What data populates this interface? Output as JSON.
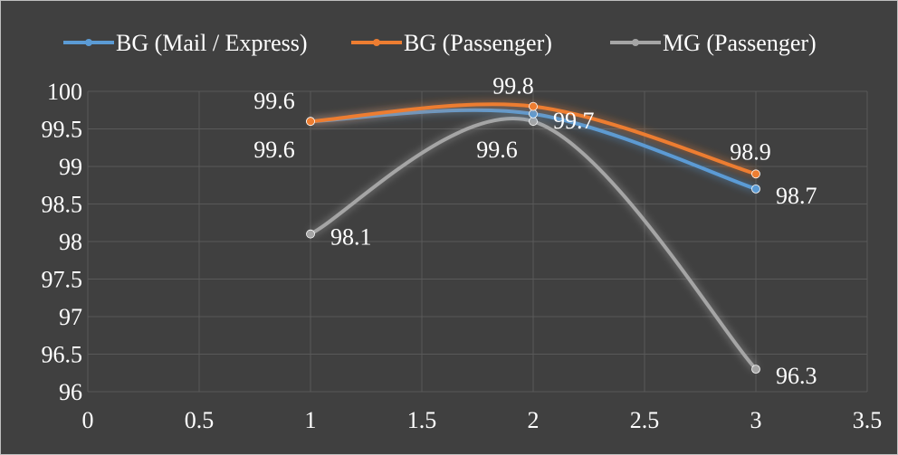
{
  "chart_data": {
    "type": "scatter",
    "title": "",
    "xlabel": "",
    "ylabel": "",
    "xlim": [
      0,
      3.5
    ],
    "ylim": [
      96,
      100
    ],
    "x_ticks": [
      "0",
      "0.5",
      "1",
      "1.5",
      "2",
      "2.5",
      "3",
      "3.5"
    ],
    "y_ticks": [
      "96",
      "96.5",
      "97",
      "97.5",
      "98",
      "98.5",
      "99",
      "99.5",
      "100"
    ],
    "grid": true,
    "smooth_lines": true,
    "legend_position": "top",
    "background": "#404040",
    "series": [
      {
        "name": "BG (Mail / Express)",
        "color": "#5b9bd5",
        "x": [
          1,
          2,
          3
        ],
        "y": [
          99.6,
          99.7,
          98.7
        ],
        "labels": [
          "99.6",
          "99.7",
          "98.7"
        ]
      },
      {
        "name": "BG (Passenger)",
        "color": "#ed7d31",
        "x": [
          1,
          2,
          3
        ],
        "y": [
          99.6,
          99.8,
          98.9
        ],
        "labels": [
          "99.6",
          "99.8",
          "98.9"
        ]
      },
      {
        "name": "MG (Passenger)",
        "color": "#a5a5a5",
        "x": [
          1,
          2,
          3
        ],
        "y": [
          98.1,
          99.6,
          96.3
        ],
        "labels": [
          "98.1",
          "99.6",
          "96.3"
        ]
      }
    ]
  }
}
